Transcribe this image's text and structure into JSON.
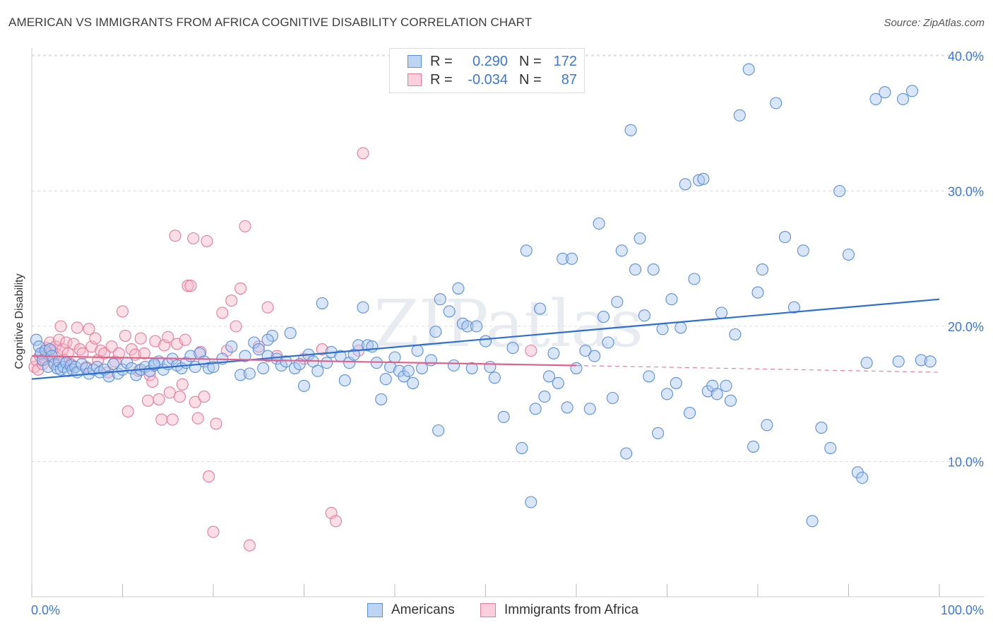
{
  "title": "AMERICAN VS IMMIGRANTS FROM AFRICA COGNITIVE DISABILITY CORRELATION CHART",
  "source": "Source: ZipAtlas.com",
  "watermark": "ZIPatlas",
  "colors": {
    "blue_fill": "#aac7ef",
    "blue_stroke": "#5b8fd6",
    "blue_line": "#2f6fd0",
    "pink_fill": "#f6b8c9",
    "pink_stroke": "#e47c9b",
    "pink_line": "#e0638c",
    "tick_label": "#3b78d8",
    "grid": "#dcdcdc"
  },
  "legend": {
    "rows": [
      {
        "r_label": "R =",
        "r_value": "0.290",
        "n_label": "N =",
        "n_value": "172"
      },
      {
        "r_label": "R =",
        "r_value": "-0.034",
        "n_label": "N =",
        "n_value": "87"
      }
    ]
  },
  "bottom_legend": {
    "series1": "Americans",
    "series2": "Immigrants from Africa"
  },
  "chart_data": {
    "type": "scatter",
    "title": "AMERICAN VS IMMIGRANTS FROM AFRICA COGNITIVE DISABILITY CORRELATION CHART",
    "xlabel": "",
    "ylabel": "Cognitive Disability",
    "xlim": [
      0,
      100
    ],
    "ylim": [
      0,
      41
    ],
    "x_tick_labels": [
      "0.0%",
      "100.0%"
    ],
    "y_ticks": [
      10,
      20,
      30,
      40
    ],
    "y_tick_labels": [
      "10.0%",
      "20.0%",
      "30.0%",
      "40.0%"
    ],
    "grid": true,
    "series": [
      {
        "name": "Americans",
        "r": 0.29,
        "n": 172,
        "trend": {
          "x": [
            0,
            100
          ],
          "y": [
            16.1,
            22.0
          ]
        },
        "points": [
          [
            0.5,
            19.0
          ],
          [
            0.8,
            18.5
          ],
          [
            1.0,
            18.0
          ],
          [
            1.2,
            17.5
          ],
          [
            1.5,
            18.2
          ],
          [
            1.8,
            17.0
          ],
          [
            2.0,
            18.3
          ],
          [
            2.2,
            17.8
          ],
          [
            2.5,
            17.2
          ],
          [
            2.8,
            16.9
          ],
          [
            3.0,
            17.4
          ],
          [
            3.2,
            16.8
          ],
          [
            3.5,
            17.0
          ],
          [
            3.8,
            17.3
          ],
          [
            4.0,
            16.7
          ],
          [
            4.3,
            17.1
          ],
          [
            4.5,
            16.8
          ],
          [
            4.8,
            17.0
          ],
          [
            5.0,
            16.6
          ],
          [
            5.5,
            17.2
          ],
          [
            6.0,
            16.9
          ],
          [
            6.3,
            16.5
          ],
          [
            6.8,
            16.8
          ],
          [
            7.2,
            17.0
          ],
          [
            7.5,
            16.6
          ],
          [
            8.0,
            16.8
          ],
          [
            8.5,
            16.3
          ],
          [
            9.0,
            17.2
          ],
          [
            9.5,
            16.5
          ],
          [
            10.0,
            16.8
          ],
          [
            10.5,
            17.3
          ],
          [
            11.0,
            16.9
          ],
          [
            11.5,
            16.4
          ],
          [
            12.0,
            16.8
          ],
          [
            12.5,
            17.0
          ],
          [
            13.0,
            16.7
          ],
          [
            13.5,
            17.1
          ],
          [
            14.0,
            17.4
          ],
          [
            14.5,
            16.8
          ],
          [
            15.0,
            17.2
          ],
          [
            15.5,
            17.6
          ],
          [
            16.0,
            17.1
          ],
          [
            16.5,
            16.9
          ],
          [
            17.0,
            17.3
          ],
          [
            17.5,
            17.8
          ],
          [
            18.0,
            17.0
          ],
          [
            18.5,
            18.0
          ],
          [
            19.0,
            17.4
          ],
          [
            19.5,
            16.9
          ],
          [
            20.0,
            17.0
          ],
          [
            21.0,
            17.6
          ],
          [
            22.0,
            18.5
          ],
          [
            23.0,
            16.4
          ],
          [
            23.5,
            17.8
          ],
          [
            24.0,
            16.5
          ],
          [
            24.5,
            18.8
          ],
          [
            25.0,
            18.3
          ],
          [
            25.5,
            16.9
          ],
          [
            26.0,
            17.8
          ],
          [
            26.5,
            19.3
          ],
          [
            27.0,
            17.6
          ],
          [
            27.5,
            17.1
          ],
          [
            28.0,
            17.4
          ],
          [
            28.5,
            19.5
          ],
          [
            29.0,
            16.9
          ],
          [
            29.5,
            17.2
          ],
          [
            30.0,
            15.6
          ],
          [
            30.5,
            17.9
          ],
          [
            31.0,
            17.4
          ],
          [
            31.5,
            16.7
          ],
          [
            32.0,
            21.7
          ],
          [
            32.5,
            17.3
          ],
          [
            33.0,
            18.1
          ],
          [
            34.0,
            17.8
          ],
          [
            34.5,
            16.0
          ],
          [
            35.0,
            17.3
          ],
          [
            35.5,
            17.9
          ],
          [
            36.0,
            18.6
          ],
          [
            36.5,
            21.4
          ],
          [
            37.0,
            18.6
          ],
          [
            37.5,
            18.5
          ],
          [
            38.0,
            17.3
          ],
          [
            38.5,
            14.6
          ],
          [
            39.0,
            16.1
          ],
          [
            39.5,
            17.0
          ],
          [
            40.0,
            17.7
          ],
          [
            40.5,
            16.7
          ],
          [
            41.0,
            16.3
          ],
          [
            41.5,
            16.7
          ],
          [
            42.0,
            15.8
          ],
          [
            42.5,
            18.2
          ],
          [
            43.0,
            16.9
          ],
          [
            44.0,
            17.5
          ],
          [
            44.5,
            19.6
          ],
          [
            44.8,
            12.3
          ],
          [
            45.0,
            22.0
          ],
          [
            46.0,
            21.1
          ],
          [
            46.5,
            17.1
          ],
          [
            47.0,
            22.8
          ],
          [
            47.5,
            20.2
          ],
          [
            48.0,
            20.0
          ],
          [
            48.5,
            16.9
          ],
          [
            49.0,
            20.0
          ],
          [
            50.0,
            18.9
          ],
          [
            50.5,
            17.0
          ],
          [
            51.0,
            16.2
          ],
          [
            52.0,
            13.3
          ],
          [
            53.0,
            18.4
          ],
          [
            54.0,
            11.0
          ],
          [
            54.5,
            25.6
          ],
          [
            55.0,
            7.0
          ],
          [
            55.5,
            13.9
          ],
          [
            56.0,
            21.3
          ],
          [
            56.5,
            14.8
          ],
          [
            57.0,
            16.3
          ],
          [
            57.5,
            18.0
          ],
          [
            58.0,
            15.8
          ],
          [
            58.5,
            25.0
          ],
          [
            59.0,
            14.0
          ],
          [
            59.5,
            25.0
          ],
          [
            60.0,
            16.9
          ],
          [
            61.0,
            18.2
          ],
          [
            61.5,
            13.9
          ],
          [
            62.0,
            17.8
          ],
          [
            62.5,
            27.6
          ],
          [
            63.0,
            20.7
          ],
          [
            63.5,
            18.8
          ],
          [
            64.0,
            14.7
          ],
          [
            64.5,
            21.8
          ],
          [
            65.0,
            25.6
          ],
          [
            65.5,
            10.6
          ],
          [
            66.0,
            34.5
          ],
          [
            66.5,
            24.2
          ],
          [
            67.0,
            26.5
          ],
          [
            67.5,
            20.8
          ],
          [
            68.0,
            16.3
          ],
          [
            68.5,
            24.2
          ],
          [
            69.0,
            12.1
          ],
          [
            69.5,
            19.8
          ],
          [
            70.0,
            15.0
          ],
          [
            70.5,
            22.0
          ],
          [
            71.0,
            15.8
          ],
          [
            71.5,
            19.9
          ],
          [
            72.0,
            30.5
          ],
          [
            72.5,
            13.6
          ],
          [
            73.0,
            23.5
          ],
          [
            73.5,
            30.8
          ],
          [
            74.0,
            30.9
          ],
          [
            74.5,
            15.2
          ],
          [
            75.0,
            15.6
          ],
          [
            75.5,
            15.0
          ],
          [
            76.0,
            21.0
          ],
          [
            76.5,
            15.6
          ],
          [
            77.0,
            14.5
          ],
          [
            77.5,
            19.4
          ],
          [
            78.0,
            35.6
          ],
          [
            79.0,
            39.0
          ],
          [
            79.5,
            11.1
          ],
          [
            80.0,
            22.5
          ],
          [
            80.5,
            24.2
          ],
          [
            81.0,
            12.7
          ],
          [
            82.0,
            36.5
          ],
          [
            83.0,
            26.6
          ],
          [
            84.0,
            21.4
          ],
          [
            85.0,
            25.6
          ],
          [
            86.0,
            5.6
          ],
          [
            87.0,
            12.5
          ],
          [
            88.0,
            11.0
          ],
          [
            89.0,
            30.0
          ],
          [
            90.0,
            25.3
          ],
          [
            91.0,
            9.2
          ],
          [
            91.5,
            8.8
          ],
          [
            92.0,
            17.3
          ],
          [
            93.0,
            36.8
          ],
          [
            94.0,
            37.3
          ],
          [
            95.5,
            17.4
          ],
          [
            96.0,
            36.8
          ],
          [
            97.0,
            37.4
          ],
          [
            98.0,
            17.5
          ],
          [
            99.0,
            17.4
          ],
          [
            13.5,
            17.2
          ],
          [
            26.0,
            19.0
          ]
        ]
      },
      {
        "name": "Immigrants from Africa",
        "r": -0.034,
        "n": 87,
        "trend": {
          "x": [
            0,
            60
          ],
          "y": [
            17.8,
            17.1
          ]
        },
        "trend_dashed": {
          "x": [
            60,
            100
          ],
          "y": [
            17.1,
            16.6
          ]
        },
        "points": [
          [
            0.3,
            17.0
          ],
          [
            0.5,
            17.5
          ],
          [
            0.7,
            16.8
          ],
          [
            0.9,
            17.8
          ],
          [
            1.0,
            18.0
          ],
          [
            1.2,
            17.2
          ],
          [
            1.4,
            17.6
          ],
          [
            1.6,
            18.4
          ],
          [
            1.8,
            17.9
          ],
          [
            2.0,
            18.8
          ],
          [
            2.2,
            18.2
          ],
          [
            2.4,
            17.4
          ],
          [
            2.6,
            18.5
          ],
          [
            2.8,
            17.9
          ],
          [
            3.0,
            19.0
          ],
          [
            3.2,
            20.0
          ],
          [
            3.4,
            18.3
          ],
          [
            3.6,
            17.5
          ],
          [
            3.8,
            18.8
          ],
          [
            4.0,
            18.0
          ],
          [
            4.3,
            17.2
          ],
          [
            4.6,
            18.7
          ],
          [
            5.0,
            19.9
          ],
          [
            5.3,
            18.3
          ],
          [
            5.6,
            18.0
          ],
          [
            6.0,
            17.0
          ],
          [
            6.3,
            19.8
          ],
          [
            6.6,
            18.5
          ],
          [
            7.0,
            19.1
          ],
          [
            7.3,
            17.5
          ],
          [
            7.6,
            18.2
          ],
          [
            8.0,
            18.0
          ],
          [
            8.4,
            16.6
          ],
          [
            8.8,
            18.5
          ],
          [
            9.2,
            17.4
          ],
          [
            9.6,
            18.0
          ],
          [
            10.0,
            21.1
          ],
          [
            10.3,
            19.3
          ],
          [
            10.6,
            13.7
          ],
          [
            11.0,
            18.3
          ],
          [
            11.4,
            17.9
          ],
          [
            11.8,
            16.7
          ],
          [
            12.0,
            19.1
          ],
          [
            12.4,
            18.0
          ],
          [
            12.8,
            14.5
          ],
          [
            13.0,
            16.4
          ],
          [
            13.3,
            15.9
          ],
          [
            13.6,
            18.9
          ],
          [
            14.0,
            14.6
          ],
          [
            14.3,
            13.1
          ],
          [
            14.6,
            18.6
          ],
          [
            15.0,
            19.2
          ],
          [
            15.2,
            15.1
          ],
          [
            15.5,
            13.1
          ],
          [
            15.8,
            26.7
          ],
          [
            16.0,
            18.7
          ],
          [
            16.3,
            14.8
          ],
          [
            16.6,
            15.7
          ],
          [
            16.9,
            19.0
          ],
          [
            17.2,
            23.0
          ],
          [
            17.5,
            23.0
          ],
          [
            17.8,
            26.5
          ],
          [
            18.0,
            14.4
          ],
          [
            18.3,
            13.2
          ],
          [
            18.6,
            18.1
          ],
          [
            19.0,
            14.8
          ],
          [
            19.3,
            26.3
          ],
          [
            19.5,
            8.9
          ],
          [
            20.0,
            4.8
          ],
          [
            20.3,
            12.8
          ],
          [
            21.0,
            21.0
          ],
          [
            21.5,
            18.2
          ],
          [
            22.0,
            21.9
          ],
          [
            22.5,
            20.0
          ],
          [
            23.0,
            22.8
          ],
          [
            23.5,
            27.4
          ],
          [
            24.0,
            3.8
          ],
          [
            25.0,
            18.5
          ],
          [
            26.0,
            21.4
          ],
          [
            27.0,
            17.8
          ],
          [
            30.0,
            17.6
          ],
          [
            32.0,
            18.3
          ],
          [
            33.0,
            6.2
          ],
          [
            33.5,
            5.6
          ],
          [
            36.0,
            18.2
          ],
          [
            36.5,
            32.8
          ],
          [
            55.0,
            18.2
          ]
        ]
      }
    ]
  }
}
